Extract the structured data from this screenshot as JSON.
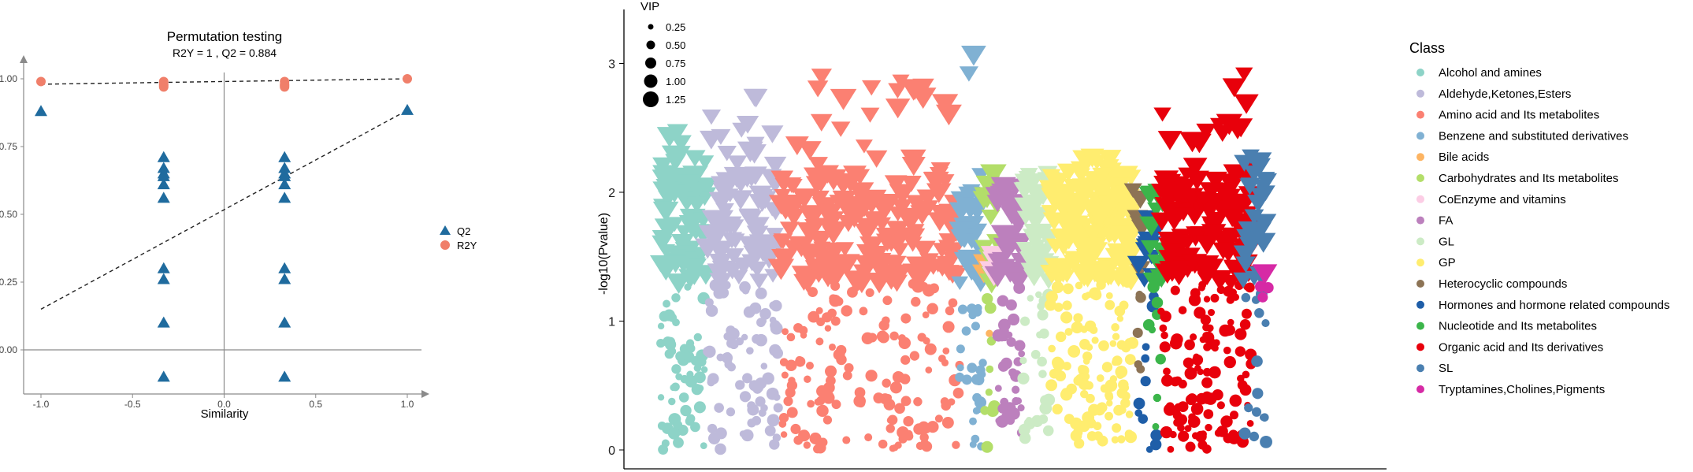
{
  "colors": {
    "Q2": "#1f6b9e",
    "R2Y": "#f07f6a",
    "axis": "#8a8a8a"
  },
  "chart_data": [
    {
      "type": "scatter",
      "title": "Permutation testing",
      "subtitle": "R2Y = 1 ,  Q2 = 0.884",
      "xlabel": "Similarity",
      "ylabel": "",
      "xlim": [
        -1.0,
        1.0
      ],
      "ylim": [
        -0.1,
        1.0
      ],
      "xticks": [
        "-1.0",
        "-0.5",
        "0.0",
        "0.5",
        "1.0"
      ],
      "yticks": [
        "0.00",
        "0.25",
        "0.50",
        "0.75",
        "1.00"
      ],
      "legend_position": "right",
      "series": [
        {
          "name": "Q2",
          "marker": "triangle",
          "points": [
            [
              -1.0,
              0.88
            ],
            [
              -0.33,
              0.71
            ],
            [
              -0.33,
              0.67
            ],
            [
              -0.33,
              0.65
            ],
            [
              -0.33,
              0.64
            ],
            [
              -0.33,
              0.61
            ],
            [
              -0.33,
              0.56
            ],
            [
              -0.33,
              0.3
            ],
            [
              -0.33,
              0.26
            ],
            [
              -0.33,
              0.1
            ],
            [
              -0.33,
              -0.1
            ],
            [
              0.33,
              0.71
            ],
            [
              0.33,
              0.67
            ],
            [
              0.33,
              0.65
            ],
            [
              0.33,
              0.64
            ],
            [
              0.33,
              0.61
            ],
            [
              0.33,
              0.56
            ],
            [
              0.33,
              0.3
            ],
            [
              0.33,
              0.26
            ],
            [
              0.33,
              0.1
            ],
            [
              0.33,
              -0.1
            ],
            [
              1.0,
              0.884
            ]
          ]
        },
        {
          "name": "R2Y",
          "marker": "circle",
          "points": [
            [
              -1.0,
              0.99
            ],
            [
              -0.33,
              0.99
            ],
            [
              -0.33,
              0.98
            ],
            [
              -0.33,
              0.975
            ],
            [
              -0.33,
              0.97
            ],
            [
              0.33,
              0.99
            ],
            [
              0.33,
              0.98
            ],
            [
              0.33,
              0.975
            ],
            [
              0.33,
              0.97
            ],
            [
              1.0,
              1.0
            ]
          ]
        }
      ],
      "regression_lines": [
        {
          "series": "Q2",
          "from": [
            -1.0,
            0.15
          ],
          "to": [
            1.0,
            0.884
          ]
        },
        {
          "series": "R2Y",
          "from": [
            -1.0,
            0.98
          ],
          "to": [
            1.0,
            1.0
          ]
        }
      ]
    },
    {
      "type": "scatter",
      "title": "",
      "xlabel": "",
      "ylabel": "-log10(Pvalue)",
      "ylim": [
        -0.05,
        3.4
      ],
      "yticks": [
        "0",
        "1",
        "2",
        "3"
      ],
      "size_legend": {
        "title": "VIP",
        "values": [
          "0.25",
          "0.50",
          "0.75",
          "1.00",
          "1.25"
        ]
      },
      "class_legend_title": "Class",
      "marker_rule": "down-triangle when -log10(Pvalue) > 1.3, circle otherwise; marker size scales with VIP",
      "classes": [
        {
          "name": "Alcohol and amines",
          "color": "#8dd3c7",
          "x_range": [
            0,
            58
          ],
          "y_range": [
            0.0,
            2.5
          ],
          "n": 130
        },
        {
          "name": "Aldehyde,Ketones,Esters",
          "color": "#bebada",
          "x_range": [
            58,
            150
          ],
          "y_range": [
            0.0,
            2.75
          ],
          "n": 170
        },
        {
          "name": "Amino acid and Its metabolites",
          "color": "#fb8072",
          "x_range": [
            150,
            380
          ],
          "y_range": [
            0.0,
            2.92
          ],
          "n": 340
        },
        {
          "name": "Benzene and substituted derivatives",
          "color": "#80b1d3",
          "x_range": [
            380,
            410
          ],
          "y_range": [
            0.0,
            3.25
          ],
          "n": 60
        },
        {
          "name": "Bile acids",
          "color": "#fdb462",
          "x_range": [
            410,
            418
          ],
          "y_range": [
            0.8,
            1.5
          ],
          "n": 4
        },
        {
          "name": "Carbohydrates and Its metabolites",
          "color": "#b3de69",
          "x_range": [
            410,
            428
          ],
          "y_range": [
            0.0,
            2.25
          ],
          "n": 22
        },
        {
          "name": "CoEnzyme and vitamins",
          "color": "#fccde5",
          "x_range": [
            418,
            428
          ],
          "y_range": [
            1.4,
            1.9
          ],
          "n": 6
        },
        {
          "name": "FA",
          "color": "#bc80bd",
          "x_range": [
            428,
            460
          ],
          "y_range": [
            0.0,
            2.05
          ],
          "n": 70
        },
        {
          "name": "GL",
          "color": "#ccebc5",
          "x_range": [
            460,
            495
          ],
          "y_range": [
            0.0,
            2.25
          ],
          "n": 60
        },
        {
          "name": "GP",
          "color": "#ffed6f",
          "x_range": [
            495,
            600
          ],
          "y_range": [
            0.0,
            2.3
          ],
          "n": 260
        },
        {
          "name": "Heterocyclic compounds",
          "color": "#8c7355",
          "x_range": [
            600,
            612
          ],
          "y_range": [
            0.6,
            2.1
          ],
          "n": 12
        },
        {
          "name": "Hormones and hormone related compounds",
          "color": "#1f5ea8",
          "x_range": [
            607,
            630
          ],
          "y_range": [
            0.0,
            2.0
          ],
          "n": 22
        },
        {
          "name": "Nucleotide and Its metabolites",
          "color": "#3bb54a",
          "x_range": [
            620,
            640
          ],
          "y_range": [
            0.0,
            2.0
          ],
          "n": 22
        },
        {
          "name": "Organic acid and Its derivatives",
          "color": "#e8000b",
          "x_range": [
            635,
            750
          ],
          "y_range": [
            0.0,
            3.05
          ],
          "n": 240
        },
        {
          "name": "SL",
          "color": "#4a7fb0",
          "x_range": [
            740,
            770
          ],
          "y_range": [
            0.0,
            2.3
          ],
          "n": 40
        },
        {
          "name": "Tryptamines,Cholines,Pigments",
          "color": "#d62aa5",
          "x_range": [
            760,
            772
          ],
          "y_range": [
            0.8,
            1.95
          ],
          "n": 4
        }
      ]
    }
  ]
}
